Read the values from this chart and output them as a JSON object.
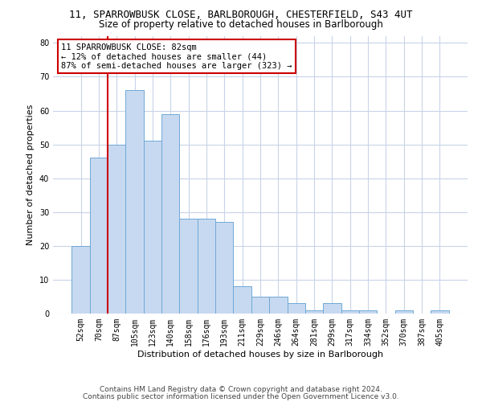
{
  "title1": "11, SPARROWBUSK CLOSE, BARLBOROUGH, CHESTERFIELD, S43 4UT",
  "title2": "Size of property relative to detached houses in Barlborough",
  "xlabel": "Distribution of detached houses by size in Barlborough",
  "ylabel": "Number of detached properties",
  "categories": [
    "52sqm",
    "70sqm",
    "87sqm",
    "105sqm",
    "123sqm",
    "140sqm",
    "158sqm",
    "176sqm",
    "193sqm",
    "211sqm",
    "229sqm",
    "246sqm",
    "264sqm",
    "281sqm",
    "299sqm",
    "317sqm",
    "334sqm",
    "352sqm",
    "370sqm",
    "387sqm",
    "405sqm"
  ],
  "values": [
    20,
    46,
    50,
    66,
    51,
    59,
    28,
    28,
    27,
    8,
    5,
    5,
    3,
    1,
    3,
    1,
    1,
    0,
    1,
    0,
    1
  ],
  "bar_color": "#c7d9f0",
  "bar_edge_color": "#6fa8d6",
  "vline_x_index": 1.5,
  "vline_color": "#cc0000",
  "annotation_line1": "11 SPARROWBUSK CLOSE: 82sqm",
  "annotation_line2": "← 12% of detached houses are smaller (44)",
  "annotation_line3": "87% of semi-detached houses are larger (323) →",
  "annotation_box_color": "white",
  "annotation_box_edge": "#cc0000",
  "ylim": [
    0,
    82
  ],
  "yticks": [
    0,
    10,
    20,
    30,
    40,
    50,
    60,
    70,
    80
  ],
  "grid_color": "#c8d4e8",
  "background_color": "white",
  "footer1": "Contains HM Land Registry data © Crown copyright and database right 2024.",
  "footer2": "Contains public sector information licensed under the Open Government Licence v3.0.",
  "title1_fontsize": 9,
  "title2_fontsize": 8.5,
  "xlabel_fontsize": 8,
  "ylabel_fontsize": 8,
  "tick_fontsize": 7,
  "annot_fontsize": 7.5,
  "footer_fontsize": 6.5
}
